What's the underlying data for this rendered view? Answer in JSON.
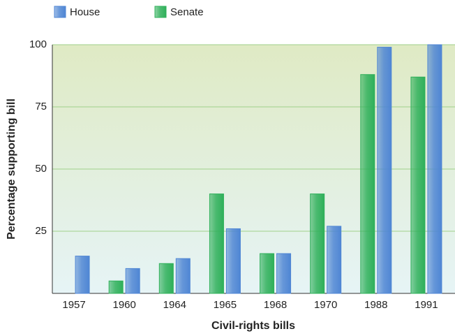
{
  "chart_data": {
    "type": "bar",
    "x_label": "Civil-rights bills",
    "y_label": "Percentage supporting bill",
    "categories": [
      "1957",
      "1960",
      "1964",
      "1965",
      "1968",
      "1970",
      "1988",
      "1991"
    ],
    "series": [
      {
        "name": "House",
        "color": "#4f86d4",
        "values": [
          15,
          10,
          14,
          26,
          16,
          27,
          99,
          100
        ]
      },
      {
        "name": "Senate",
        "color": "#2fb05a",
        "values": [
          null,
          5,
          12,
          40,
          16,
          40,
          88,
          87
        ]
      }
    ],
    "ylim": [
      0,
      100
    ],
    "yticks": [
      25,
      50,
      75,
      100
    ],
    "grid": true,
    "legend": "top-left"
  }
}
